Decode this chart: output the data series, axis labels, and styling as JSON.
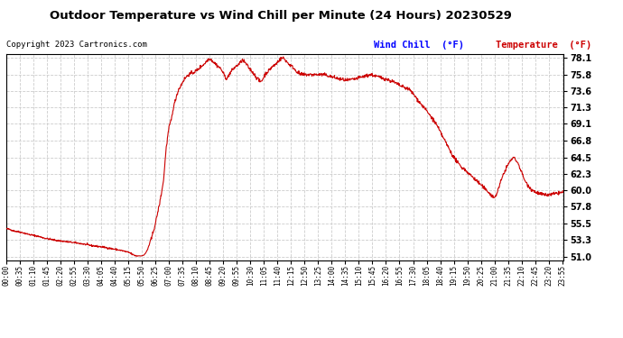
{
  "title": "Outdoor Temperature vs Wind Chill per Minute (24 Hours) 20230529",
  "copyright": "Copyright 2023 Cartronics.com",
  "legend_wind_chill": "Wind Chill  (°F)",
  "legend_temperature": "Temperature  (°F)",
  "ylabel_ticks": [
    51.0,
    53.3,
    55.5,
    57.8,
    60.0,
    62.3,
    64.5,
    66.8,
    69.1,
    71.3,
    73.6,
    75.8,
    78.1
  ],
  "ylim": [
    50.5,
    78.6
  ],
  "bg_color": "#ffffff",
  "plot_bg_color": "#ffffff",
  "grid_color": "#cccccc",
  "line_color": "#cc0000",
  "title_color": "#000000",
  "copyright_color": "#000000",
  "wind_chill_legend_color": "#0000ff",
  "temp_legend_color": "#cc0000",
  "x_tick_interval": 35,
  "total_minutes": 1440,
  "keypoints": [
    [
      0,
      54.8
    ],
    [
      10,
      54.7
    ],
    [
      20,
      54.5
    ],
    [
      40,
      54.3
    ],
    [
      60,
      54.0
    ],
    [
      80,
      53.8
    ],
    [
      100,
      53.5
    ],
    [
      130,
      53.2
    ],
    [
      160,
      53.0
    ],
    [
      190,
      52.8
    ],
    [
      220,
      52.5
    ],
    [
      250,
      52.3
    ],
    [
      280,
      52.0
    ],
    [
      300,
      51.8
    ],
    [
      320,
      51.5
    ],
    [
      325,
      51.3
    ],
    [
      330,
      51.2
    ],
    [
      335,
      51.1
    ],
    [
      340,
      51.1
    ],
    [
      345,
      51.1
    ],
    [
      350,
      51.1
    ],
    [
      355,
      51.2
    ],
    [
      360,
      51.5
    ],
    [
      365,
      52.0
    ],
    [
      370,
      52.8
    ],
    [
      375,
      53.5
    ],
    [
      380,
      54.5
    ],
    [
      385,
      55.5
    ],
    [
      390,
      56.8
    ],
    [
      395,
      58.0
    ],
    [
      400,
      59.5
    ],
    [
      405,
      61.0
    ],
    [
      408,
      62.5
    ],
    [
      410,
      64.0
    ],
    [
      412,
      65.5
    ],
    [
      415,
      66.5
    ],
    [
      417,
      67.5
    ],
    [
      420,
      68.5
    ],
    [
      422,
      69.0
    ],
    [
      425,
      69.5
    ],
    [
      428,
      70.2
    ],
    [
      430,
      71.0
    ],
    [
      435,
      72.0
    ],
    [
      440,
      73.0
    ],
    [
      445,
      73.8
    ],
    [
      450,
      74.2
    ],
    [
      455,
      74.8
    ],
    [
      460,
      75.2
    ],
    [
      465,
      75.5
    ],
    [
      470,
      75.8
    ],
    [
      480,
      76.0
    ],
    [
      490,
      76.3
    ],
    [
      495,
      76.5
    ],
    [
      500,
      76.8
    ],
    [
      505,
      77.0
    ],
    [
      510,
      77.2
    ],
    [
      515,
      77.5
    ],
    [
      520,
      77.8
    ],
    [
      525,
      78.0
    ],
    [
      530,
      77.8
    ],
    [
      535,
      77.5
    ],
    [
      540,
      77.3
    ],
    [
      545,
      77.0
    ],
    [
      550,
      76.8
    ],
    [
      555,
      76.5
    ],
    [
      560,
      76.0
    ],
    [
      565,
      75.5
    ],
    [
      570,
      75.2
    ],
    [
      575,
      75.8
    ],
    [
      580,
      76.2
    ],
    [
      585,
      76.5
    ],
    [
      590,
      76.8
    ],
    [
      595,
      77.0
    ],
    [
      600,
      77.2
    ],
    [
      605,
      77.5
    ],
    [
      610,
      77.8
    ],
    [
      615,
      77.5
    ],
    [
      620,
      77.2
    ],
    [
      625,
      76.8
    ],
    [
      630,
      76.5
    ],
    [
      635,
      76.2
    ],
    [
      640,
      75.8
    ],
    [
      645,
      75.5
    ],
    [
      650,
      75.2
    ],
    [
      655,
      74.8
    ],
    [
      660,
      75.0
    ],
    [
      665,
      75.5
    ],
    [
      670,
      76.0
    ],
    [
      675,
      76.2
    ],
    [
      680,
      76.5
    ],
    [
      685,
      76.8
    ],
    [
      690,
      77.0
    ],
    [
      695,
      77.2
    ],
    [
      700,
      77.5
    ],
    [
      705,
      77.8
    ],
    [
      710,
      78.0
    ],
    [
      715,
      78.1
    ],
    [
      720,
      77.8
    ],
    [
      725,
      77.5
    ],
    [
      730,
      77.2
    ],
    [
      735,
      77.0
    ],
    [
      740,
      76.8
    ],
    [
      745,
      76.5
    ],
    [
      750,
      76.2
    ],
    [
      755,
      76.0
    ],
    [
      760,
      75.8
    ],
    [
      765,
      75.8
    ],
    [
      770,
      75.8
    ],
    [
      775,
      75.8
    ],
    [
      780,
      75.8
    ],
    [
      785,
      75.8
    ],
    [
      790,
      75.8
    ],
    [
      795,
      75.8
    ],
    [
      800,
      75.8
    ],
    [
      810,
      75.8
    ],
    [
      820,
      75.8
    ],
    [
      840,
      75.5
    ],
    [
      860,
      75.2
    ],
    [
      880,
      75.0
    ],
    [
      900,
      75.2
    ],
    [
      920,
      75.5
    ],
    [
      940,
      75.8
    ],
    [
      960,
      75.5
    ],
    [
      980,
      75.2
    ],
    [
      1000,
      74.8
    ],
    [
      1010,
      74.5
    ],
    [
      1020,
      74.2
    ],
    [
      1030,
      74.0
    ],
    [
      1040,
      73.8
    ],
    [
      1045,
      73.5
    ],
    [
      1050,
      73.2
    ],
    [
      1060,
      72.5
    ],
    [
      1070,
      71.8
    ],
    [
      1080,
      71.2
    ],
    [
      1090,
      70.5
    ],
    [
      1100,
      69.8
    ],
    [
      1110,
      69.0
    ],
    [
      1115,
      68.5
    ],
    [
      1120,
      68.0
    ],
    [
      1125,
      67.5
    ],
    [
      1130,
      67.0
    ],
    [
      1135,
      66.5
    ],
    [
      1140,
      66.0
    ],
    [
      1145,
      65.5
    ],
    [
      1150,
      65.0
    ],
    [
      1155,
      64.5
    ],
    [
      1160,
      64.2
    ],
    [
      1165,
      63.8
    ],
    [
      1170,
      63.5
    ],
    [
      1175,
      63.2
    ],
    [
      1180,
      63.0
    ],
    [
      1185,
      62.8
    ],
    [
      1190,
      62.5
    ],
    [
      1195,
      62.3
    ],
    [
      1200,
      62.0
    ],
    [
      1205,
      61.8
    ],
    [
      1210,
      61.5
    ],
    [
      1215,
      61.3
    ],
    [
      1220,
      61.0
    ],
    [
      1225,
      60.8
    ],
    [
      1230,
      60.5
    ],
    [
      1235,
      60.2
    ],
    [
      1240,
      60.0
    ],
    [
      1245,
      59.8
    ],
    [
      1250,
      59.5
    ],
    [
      1255,
      59.2
    ],
    [
      1260,
      59.0
    ],
    [
      1265,
      59.5
    ],
    [
      1270,
      60.2
    ],
    [
      1275,
      61.0
    ],
    [
      1280,
      61.8
    ],
    [
      1285,
      62.5
    ],
    [
      1290,
      63.0
    ],
    [
      1295,
      63.5
    ],
    [
      1300,
      64.0
    ],
    [
      1305,
      64.3
    ],
    [
      1310,
      64.5
    ],
    [
      1315,
      64.2
    ],
    [
      1320,
      63.8
    ],
    [
      1325,
      63.2
    ],
    [
      1330,
      62.5
    ],
    [
      1335,
      61.8
    ],
    [
      1340,
      61.2
    ],
    [
      1345,
      60.8
    ],
    [
      1350,
      60.5
    ],
    [
      1355,
      60.2
    ],
    [
      1360,
      60.0
    ],
    [
      1365,
      59.8
    ],
    [
      1370,
      59.7
    ],
    [
      1375,
      59.6
    ],
    [
      1380,
      59.5
    ],
    [
      1390,
      59.4
    ],
    [
      1400,
      59.4
    ],
    [
      1410,
      59.5
    ],
    [
      1420,
      59.6
    ],
    [
      1430,
      59.7
    ],
    [
      1439,
      59.8
    ]
  ]
}
